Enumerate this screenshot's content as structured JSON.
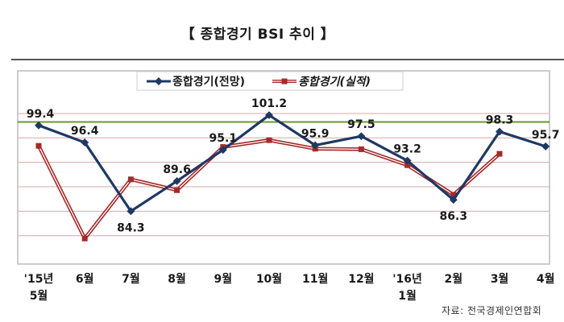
{
  "title": "【 종합경기 BSI 추이 】",
  "source": "자료: 전국경제인연합회",
  "colors": {
    "forecast": "#1f3864",
    "actual": "#a52a2a",
    "actual_inner": "#ffffff",
    "reference": "#6b9a2a",
    "grid": "#d6a8a8",
    "frame": "#bcbcbc"
  },
  "chart_data": {
    "type": "line",
    "x_tick_labels": [
      [
        "'15년",
        "5월"
      ],
      [
        "6월"
      ],
      [
        "7월"
      ],
      [
        "8월"
      ],
      [
        "9월"
      ],
      [
        "10월"
      ],
      [
        "11월"
      ],
      [
        "12월"
      ],
      [
        "'16년",
        "1월"
      ],
      [
        "2월"
      ],
      [
        "3월"
      ],
      [
        "4월"
      ]
    ],
    "ylim": [
      75,
      109
    ],
    "grid": true,
    "reference_line": 100,
    "legend_position": "top",
    "series": [
      {
        "name": "종합경기(전망)",
        "style": "solid-dark-line-with-diamond-markers",
        "values": [
          99.4,
          96.4,
          84.3,
          89.6,
          95.1,
          101.2,
          95.9,
          97.5,
          93.2,
          86.3,
          98.3,
          95.7
        ],
        "labels": [
          "99.4",
          "96.4",
          "84.3",
          "89.6",
          "95.1",
          "101.2",
          "95.9",
          "97.5",
          "93.2",
          "86.3",
          "98.3",
          "95.7"
        ]
      },
      {
        "name": "종합경기(실적)",
        "style": "double-red-line-with-square-markers",
        "values": [
          95.8,
          79.5,
          89.9,
          88.0,
          95.6,
          96.8,
          95.3,
          95.2,
          92.4,
          87.2,
          94.4,
          null
        ],
        "labels": []
      }
    ]
  }
}
